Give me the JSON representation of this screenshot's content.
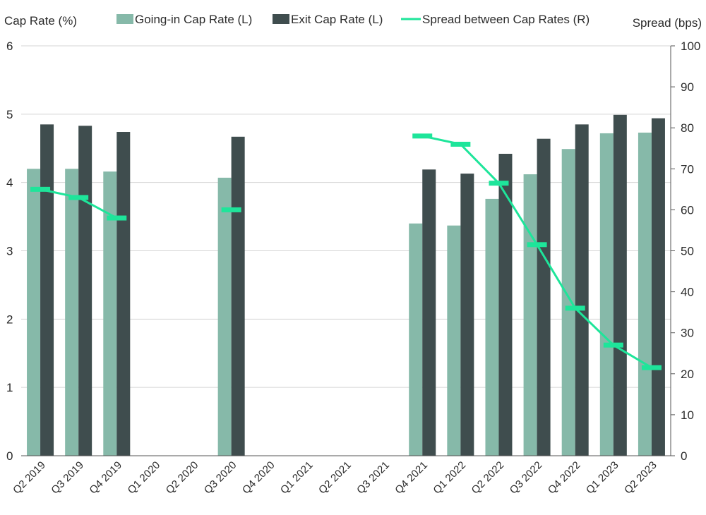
{
  "chart_data": {
    "type": "bar",
    "left_axis_title": "Cap Rate (%)",
    "right_axis_title": "Spread (bps)",
    "categories": [
      "Q2 2019",
      "Q3 2019",
      "Q4 2019",
      "Q1 2020",
      "Q2 2020",
      "Q3 2020",
      "Q4 2020",
      "Q1 2021",
      "Q2 2021",
      "Q3 2021",
      "Q4 2021",
      "Q1 2022",
      "Q2 2022",
      "Q3 2022",
      "Q4 2022",
      "Q1 2023",
      "Q2 2023"
    ],
    "series": [
      {
        "name": "Going-in Cap Rate (L)",
        "type": "bar",
        "axis": "left",
        "color": "#86b9a9",
        "values": [
          4.2,
          4.2,
          4.16,
          null,
          null,
          4.07,
          null,
          null,
          null,
          null,
          3.4,
          3.37,
          3.76,
          4.12,
          4.49,
          4.72,
          4.73
        ]
      },
      {
        "name": "Exit Cap Rate (L)",
        "type": "bar",
        "axis": "left",
        "color": "#3f4d4e",
        "values": [
          4.85,
          4.83,
          4.74,
          null,
          null,
          4.67,
          null,
          null,
          null,
          null,
          4.19,
          4.13,
          4.42,
          4.64,
          4.85,
          4.99,
          4.94
        ]
      },
      {
        "name": "Spread between Cap Rates (R)",
        "type": "line",
        "axis": "right",
        "color": "#1ee59a",
        "values": [
          65,
          63,
          58,
          null,
          null,
          60,
          null,
          null,
          null,
          null,
          78,
          76,
          66.5,
          51.5,
          36,
          27,
          21.5
        ]
      }
    ],
    "left_axis": {
      "min": 0,
      "max": 6,
      "ticks": [
        0,
        1,
        2,
        3,
        4,
        5,
        6
      ]
    },
    "right_axis": {
      "min": 0,
      "max": 100,
      "ticks": [
        0,
        10,
        20,
        30,
        40,
        50,
        60,
        70,
        80,
        90,
        100
      ]
    },
    "grid": true,
    "legend_position": "top"
  }
}
